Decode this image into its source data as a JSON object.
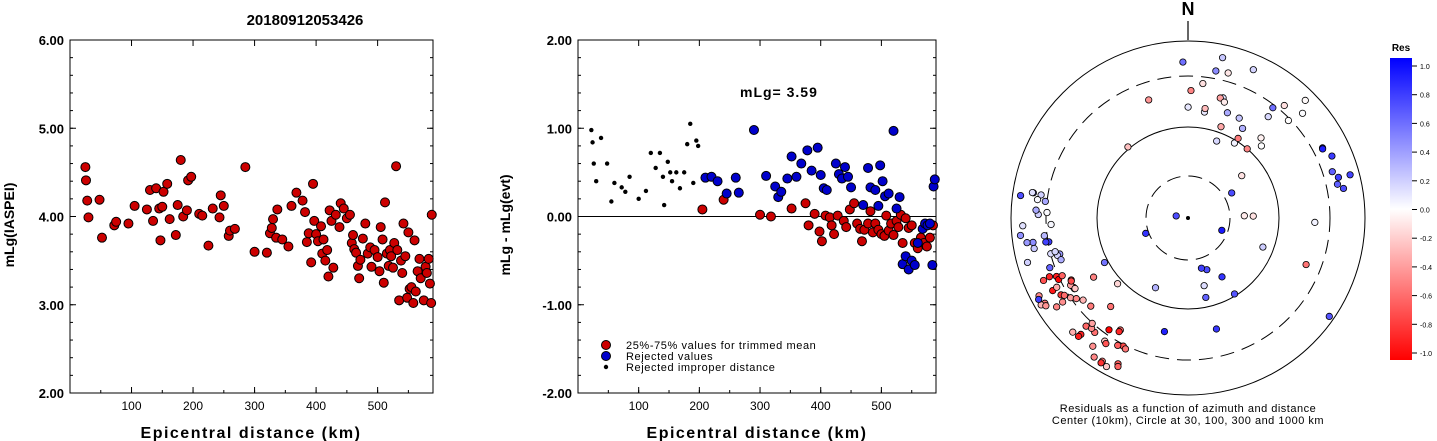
{
  "title": "20180912053426",
  "north_label": "N",
  "polar_caption_1": "Residuals as a function of azimuth and distance",
  "polar_caption_2": "Center (10km), Circle at 30, 100, 300 and 1000 km",
  "colorbar": {
    "title": "Res",
    "ticks": [
      "1.0",
      "0.8",
      "0.6",
      "0.4",
      "0.2",
      "0.0",
      "-0.2",
      "-0.4",
      "-0.6",
      "-0.8",
      "-1.0"
    ],
    "positive_color": "#0000ff",
    "negative_color": "#ff0000"
  },
  "chart_data": [
    {
      "type": "scatter",
      "title": "",
      "xlabel": "Epicentral distance (km)",
      "ylabel": "mLg(IASPEI)",
      "xlim": [
        0,
        590
      ],
      "ylim": [
        2.0,
        6.0
      ],
      "xticks": [
        "100",
        "200",
        "300",
        "400",
        "500"
      ],
      "yticks": [
        "2.00",
        "3.00",
        "4.00",
        "5.00",
        "6.00"
      ],
      "marker_color": "#cc0000",
      "points": [
        [
          25,
          4.56
        ],
        [
          26,
          4.41
        ],
        [
          28,
          4.18
        ],
        [
          30,
          3.99
        ],
        [
          48,
          4.19
        ],
        [
          52,
          3.76
        ],
        [
          72,
          3.9
        ],
        [
          75,
          3.94
        ],
        [
          95,
          3.92
        ],
        [
          105,
          4.12
        ],
        [
          125,
          4.08
        ],
        [
          130,
          4.3
        ],
        [
          135,
          3.95
        ],
        [
          140,
          4.32
        ],
        [
          145,
          4.09
        ],
        [
          147,
          3.73
        ],
        [
          150,
          4.11
        ],
        [
          152,
          4.28
        ],
        [
          158,
          4.37
        ],
        [
          162,
          3.97
        ],
        [
          172,
          3.79
        ],
        [
          175,
          4.13
        ],
        [
          180,
          4.64
        ],
        [
          184,
          4.0
        ],
        [
          190,
          4.07
        ],
        [
          192,
          4.41
        ],
        [
          197,
          4.45
        ],
        [
          210,
          4.03
        ],
        [
          215,
          4.01
        ],
        [
          225,
          3.67
        ],
        [
          232,
          4.09
        ],
        [
          243,
          3.99
        ],
        [
          245,
          4.24
        ],
        [
          250,
          4.12
        ],
        [
          258,
          3.78
        ],
        [
          260,
          3.84
        ],
        [
          268,
          3.86
        ],
        [
          285,
          4.56
        ],
        [
          300,
          3.6
        ],
        [
          320,
          3.59
        ],
        [
          325,
          3.81
        ],
        [
          328,
          3.87
        ],
        [
          330,
          3.97
        ],
        [
          335,
          3.76
        ],
        [
          337,
          4.08
        ],
        [
          345,
          3.74
        ],
        [
          355,
          3.66
        ],
        [
          360,
          4.12
        ],
        [
          368,
          4.27
        ],
        [
          378,
          4.18
        ],
        [
          382,
          4.05
        ],
        [
          385,
          3.71
        ],
        [
          388,
          3.81
        ],
        [
          392,
          3.48
        ],
        [
          395,
          4.37
        ],
        [
          397,
          3.95
        ],
        [
          400,
          3.8
        ],
        [
          403,
          3.72
        ],
        [
          408,
          3.89
        ],
        [
          410,
          3.58
        ],
        [
          412,
          3.74
        ],
        [
          415,
          3.5
        ],
        [
          418,
          3.62
        ],
        [
          420,
          3.32
        ],
        [
          422,
          4.07
        ],
        [
          425,
          3.95
        ],
        [
          428,
          3.42
        ],
        [
          432,
          4.02
        ],
        [
          438,
          3.88
        ],
        [
          440,
          4.15
        ],
        [
          445,
          4.09
        ],
        [
          450,
          3.98
        ],
        [
          455,
          4.02
        ],
        [
          458,
          3.7
        ],
        [
          460,
          3.79
        ],
        [
          462,
          3.63
        ],
        [
          465,
          3.59
        ],
        [
          468,
          3.44
        ],
        [
          470,
          3.3
        ],
        [
          472,
          3.51
        ],
        [
          476,
          3.75
        ],
        [
          480,
          3.92
        ],
        [
          484,
          3.58
        ],
        [
          488,
          3.65
        ],
        [
          490,
          3.43
        ],
        [
          495,
          3.62
        ],
        [
          500,
          3.54
        ],
        [
          503,
          3.38
        ],
        [
          505,
          3.88
        ],
        [
          508,
          3.74
        ],
        [
          510,
          3.25
        ],
        [
          512,
          4.16
        ],
        [
          515,
          3.58
        ],
        [
          518,
          3.44
        ],
        [
          520,
          3.62
        ],
        [
          522,
          3.55
        ],
        [
          525,
          3.42
        ],
        [
          527,
          3.7
        ],
        [
          530,
          4.57
        ],
        [
          532,
          3.62
        ],
        [
          535,
          3.05
        ],
        [
          538,
          3.5
        ],
        [
          540,
          3.36
        ],
        [
          542,
          3.92
        ],
        [
          545,
          3.55
        ],
        [
          548,
          3.08
        ],
        [
          550,
          3.82
        ],
        [
          552,
          3.18
        ],
        [
          555,
          3.2
        ],
        [
          558,
          3.02
        ],
        [
          560,
          3.73
        ],
        [
          562,
          3.15
        ],
        [
          565,
          3.38
        ],
        [
          568,
          3.52
        ],
        [
          570,
          3.3
        ],
        [
          575,
          3.05
        ],
        [
          578,
          3.43
        ],
        [
          580,
          3.36
        ],
        [
          583,
          3.52
        ],
        [
          585,
          3.24
        ],
        [
          587,
          3.02
        ],
        [
          588,
          4.02
        ]
      ]
    },
    {
      "type": "scatter",
      "title": "",
      "xlabel": "Epicentral distance (km)",
      "ylabel": "mLg - mLg(evt)",
      "xlim": [
        0,
        590
      ],
      "ylim": [
        -2.0,
        2.0
      ],
      "xticks": [
        "100",
        "200",
        "300",
        "400",
        "500"
      ],
      "yticks": [
        "-2.00",
        "-1.00",
        "0.00",
        "1.00",
        "2.00"
      ],
      "annotation": "mLg= 3.59",
      "legend": [
        "25%-75% values for trimmed mean",
        "Rejected values",
        "Rejected improper distance"
      ],
      "series": [
        {
          "name": "25%-75% values for trimmed mean",
          "color": "#cc0000",
          "points": [
            [
              205,
              0.08
            ],
            [
              240,
              0.19
            ],
            [
              300,
              0.02
            ],
            [
              318,
              0.0
            ],
            [
              352,
              0.09
            ],
            [
              375,
              0.15
            ],
            [
              380,
              -0.1
            ],
            [
              390,
              0.03
            ],
            [
              398,
              -0.17
            ],
            [
              402,
              -0.28
            ],
            [
              408,
              0.01
            ],
            [
              415,
              -0.01
            ],
            [
              418,
              -0.1
            ],
            [
              422,
              -0.2
            ],
            [
              428,
              0.01
            ],
            [
              438,
              -0.05
            ],
            [
              442,
              -0.12
            ],
            [
              448,
              0.08
            ],
            [
              455,
              0.15
            ],
            [
              460,
              -0.08
            ],
            [
              465,
              -0.14
            ],
            [
              468,
              -0.28
            ],
            [
              472,
              -0.15
            ],
            [
              478,
              -0.08
            ],
            [
              482,
              0.06
            ],
            [
              486,
              -0.18
            ],
            [
              490,
              -0.08
            ],
            [
              495,
              -0.15
            ],
            [
              500,
              -0.2
            ],
            [
              505,
              -0.22
            ],
            [
              508,
              0.01
            ],
            [
              512,
              -0.16
            ],
            [
              516,
              -0.08
            ],
            [
              520,
              -0.21
            ],
            [
              525,
              -0.05
            ],
            [
              528,
              -0.12
            ],
            [
              532,
              0.02
            ],
            [
              535,
              -0.3
            ],
            [
              540,
              -0.02
            ],
            [
              545,
              -0.13
            ],
            [
              550,
              -0.1
            ],
            [
              555,
              -0.3
            ],
            [
              560,
              -0.36
            ],
            [
              565,
              -0.24
            ],
            [
              570,
              -0.3
            ],
            [
              575,
              -0.34
            ],
            [
              580,
              -0.24
            ],
            [
              585,
              -0.1
            ]
          ]
        },
        {
          "name": "Rejected values",
          "color": "#0000cc",
          "points": [
            [
              210,
              0.44
            ],
            [
              220,
              0.45
            ],
            [
              230,
              0.4
            ],
            [
              245,
              0.26
            ],
            [
              260,
              0.44
            ],
            [
              265,
              0.27
            ],
            [
              290,
              0.98
            ],
            [
              310,
              0.46
            ],
            [
              325,
              0.34
            ],
            [
              330,
              0.22
            ],
            [
              335,
              0.28
            ],
            [
              345,
              0.43
            ],
            [
              352,
              0.68
            ],
            [
              360,
              0.45
            ],
            [
              368,
              0.6
            ],
            [
              378,
              0.75
            ],
            [
              385,
              0.52
            ],
            [
              395,
              0.78
            ],
            [
              400,
              0.47
            ],
            [
              405,
              0.32
            ],
            [
              410,
              0.3
            ],
            [
              425,
              0.6
            ],
            [
              430,
              0.48
            ],
            [
              435,
              0.43
            ],
            [
              440,
              0.56
            ],
            [
              445,
              0.45
            ],
            [
              450,
              0.33
            ],
            [
              470,
              0.13
            ],
            [
              478,
              0.55
            ],
            [
              482,
              0.33
            ],
            [
              490,
              0.3
            ],
            [
              495,
              0.12
            ],
            [
              498,
              0.58
            ],
            [
              502,
              0.4
            ],
            [
              506,
              0.23
            ],
            [
              512,
              0.26
            ],
            [
              520,
              0.97
            ],
            [
              525,
              0.09
            ],
            [
              530,
              0.22
            ],
            [
              535,
              -0.54
            ],
            [
              540,
              -0.45
            ],
            [
              545,
              -0.6
            ],
            [
              550,
              -0.5
            ],
            [
              555,
              -0.55
            ],
            [
              560,
              -0.3
            ],
            [
              568,
              -0.14
            ],
            [
              572,
              -0.08
            ],
            [
              576,
              -0.1
            ],
            [
              580,
              -0.08
            ],
            [
              584,
              -0.55
            ],
            [
              586,
              0.34
            ],
            [
              588,
              0.42
            ]
          ]
        },
        {
          "name": "Rejected improper distance",
          "color": "#000000",
          "points": [
            [
              22,
              0.98
            ],
            [
              24,
              0.84
            ],
            [
              26,
              0.6
            ],
            [
              30,
              0.4
            ],
            [
              38,
              0.89
            ],
            [
              48,
              0.6
            ],
            [
              55,
              0.17
            ],
            [
              60,
              0.38
            ],
            [
              72,
              0.33
            ],
            [
              78,
              0.28
            ],
            [
              85,
              0.45
            ],
            [
              100,
              0.2
            ],
            [
              112,
              0.29
            ],
            [
              120,
              0.72
            ],
            [
              128,
              0.55
            ],
            [
              135,
              0.72
            ],
            [
              140,
              0.45
            ],
            [
              142,
              0.13
            ],
            [
              148,
              0.62
            ],
            [
              152,
              0.5
            ],
            [
              155,
              0.4
            ],
            [
              162,
              0.5
            ],
            [
              168,
              0.32
            ],
            [
              175,
              0.5
            ],
            [
              180,
              0.82
            ],
            [
              185,
              1.05
            ],
            [
              190,
              0.38
            ],
            [
              195,
              0.86
            ],
            [
              198,
              0.8
            ]
          ]
        }
      ]
    }
  ]
}
